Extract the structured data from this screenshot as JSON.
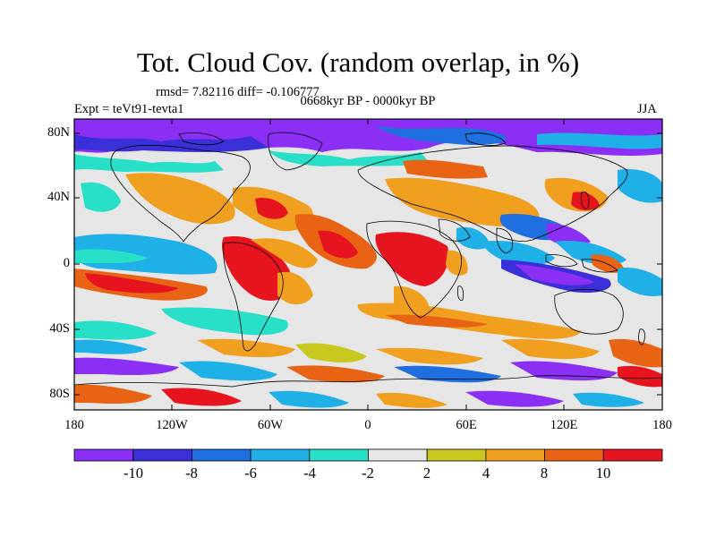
{
  "title": "Tot. Cloud Cov. (random overlap, in %)",
  "stats": "rmsd= 7.82116 diff= -0.106777",
  "period": "0668kyr BP - 0000kyr BP",
  "experiment": "Expt = teVt91-tevta1",
  "season": "JJA",
  "lat_labels": [
    "80N",
    "40N",
    "0",
    "40S",
    "80S"
  ],
  "lon_labels": [
    "180",
    "120W",
    "60W",
    "0",
    "60E",
    "120E",
    "180"
  ],
  "colorbar": {
    "labels": [
      "-10",
      "-8",
      "-6",
      "-4",
      "-2",
      "2",
      "4",
      "8",
      "10"
    ],
    "colors": [
      "#8b2ff5",
      "#3b2fd8",
      "#1f6fe0",
      "#1fb0e8",
      "#28e0c8",
      "#e6e6e6",
      "#c8c81e",
      "#f0a01e",
      "#e86414",
      "#e6141e"
    ]
  },
  "palette": {
    "purple": "#8b2ff5",
    "blue": "#3b2fd8",
    "midblue": "#1f6fe0",
    "cyan": "#1fb0e8",
    "teal": "#28e0c8",
    "white": "#e6e6e6",
    "olive": "#c8c81e",
    "orange": "#f0a01e",
    "darkorange": "#e86414",
    "red": "#e6141e"
  }
}
